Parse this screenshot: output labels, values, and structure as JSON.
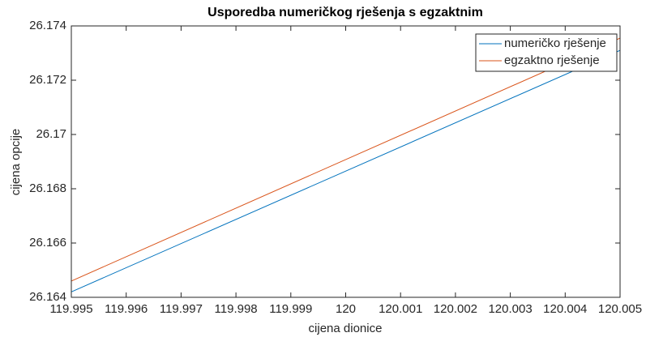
{
  "chart_data": {
    "type": "line",
    "title": "Usporedba numeričkog rješenja s egzaktnim",
    "x_label": "cijena dionice",
    "y_label": "cijena opcije",
    "x": [
      119.995,
      120.005
    ],
    "series": [
      {
        "name": "numeričko rješenje",
        "color": "#0072bd",
        "values": [
          26.1642,
          26.1731
        ]
      },
      {
        "name": "egzaktno rješenje",
        "color": "#d95319",
        "values": [
          26.1646,
          26.17355
        ]
      }
    ],
    "xlim": [
      119.995,
      120.005
    ],
    "xticks": [
      119.995,
      119.996,
      119.997,
      119.998,
      119.999,
      120,
      120.001,
      120.002,
      120.003,
      120.004,
      120.005
    ],
    "ylim": [
      26.164,
      26.174
    ],
    "yticks": [
      26.164,
      26.166,
      26.168,
      26.17,
      26.172,
      26.174
    ],
    "legend": "upper right"
  }
}
